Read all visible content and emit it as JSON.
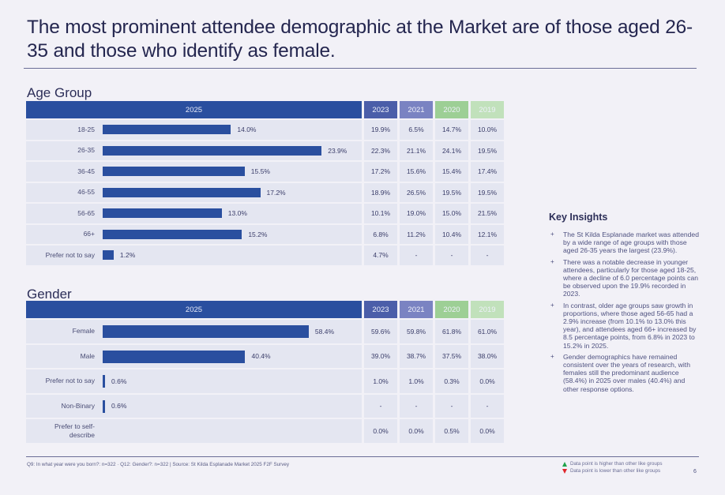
{
  "page": {
    "title": "The most prominent attendee demographic at the Market are of those aged 26-35 and those who identify as female.",
    "page_number": "6",
    "footnote": "Q9: In what year were you born?: n=322 · Q12: Gender?: n=322 | Source: St Kilda Esplanade Market 2025 F2F Survey",
    "legend": {
      "higher": "Data point is higher than other like groups",
      "lower": "Data point is lower than other like groups",
      "higher_color": "#1fa34a",
      "lower_color": "#e0262b"
    }
  },
  "colors": {
    "bar": "#2a4f9f",
    "y2025": "#2a4f9f",
    "y2023": "#4b5ea9",
    "y2021": "#7a83c2",
    "y2020": "#9dcf95",
    "y2019": "#c1e1bb"
  },
  "insights": {
    "title": "Key Insights",
    "items": [
      "The St Kilda Esplanade market was attended by a wide range of age groups with those aged 26-35 years the largest (23.9%).",
      "There was a notable decrease in younger attendees, particularly for those aged 18-25, where a decline of 6.0 percentage points can be observed upon the 19.9% recorded in 2023.",
      "In contrast, older age groups saw growth in proportions, where those aged 56-65 had a 2.9% increase (from 10.1% to 13.0% this year), and attendees aged 66+ increased by 8.5 percentage points, from 6.8% in 2023 to 15.2% in 2025.",
      "Gender demographics have remained consistent over the years of research, with females still the predominant audience (58.4%) in 2025 over males (40.4%) and other response options."
    ]
  },
  "chart_data": [
    {
      "type": "bar",
      "orientation": "horizontal",
      "title": "Age Group",
      "header_current": "2025",
      "comparison_years": [
        "2023",
        "2021",
        "2020",
        "2019"
      ],
      "categories": [
        "18-25",
        "26-35",
        "36-45",
        "46-55",
        "56-65",
        "66+",
        "Prefer not to say"
      ],
      "values": [
        14.0,
        23.9,
        15.5,
        17.2,
        13.0,
        15.2,
        1.2
      ],
      "value_labels": [
        "14.0%",
        "23.9%",
        "15.5%",
        "17.2%",
        "13.0%",
        "15.2%",
        "1.2%"
      ],
      "xlim": [
        0,
        25
      ],
      "comparison_table": [
        [
          "19.9%",
          "6.5%",
          "14.7%",
          "10.0%"
        ],
        [
          "22.3%",
          "21.1%",
          "24.1%",
          "19.5%"
        ],
        [
          "17.2%",
          "15.6%",
          "15.4%",
          "17.4%"
        ],
        [
          "18.9%",
          "26.5%",
          "19.5%",
          "19.5%"
        ],
        [
          "10.1%",
          "19.0%",
          "15.0%",
          "21.5%"
        ],
        [
          "6.8%",
          "11.2%",
          "10.4%",
          "12.1%"
        ],
        [
          "4.7%",
          "-",
          "-",
          "-"
        ]
      ]
    },
    {
      "type": "bar",
      "orientation": "horizontal",
      "title": "Gender",
      "header_current": "2025",
      "comparison_years": [
        "2023",
        "2021",
        "2020",
        "2019"
      ],
      "categories": [
        "Female",
        "Male",
        "Prefer not to say",
        "Non-Binary",
        "Prefer to self-describe"
      ],
      "values": [
        58.4,
        40.4,
        0.6,
        0.6,
        null
      ],
      "value_labels": [
        "58.4%",
        "40.4%",
        "0.6%",
        "0.6%",
        ""
      ],
      "xlim": [
        0,
        62
      ],
      "comparison_table": [
        [
          "59.6%",
          "59.8%",
          "61.8%",
          "61.0%"
        ],
        [
          "39.0%",
          "38.7%",
          "37.5%",
          "38.0%"
        ],
        [
          "1.0%",
          "1.0%",
          "0.3%",
          "0.0%"
        ],
        [
          "-",
          "-",
          "-",
          "-"
        ],
        [
          "0.0%",
          "0.0%",
          "0.5%",
          "0.0%"
        ]
      ]
    }
  ]
}
